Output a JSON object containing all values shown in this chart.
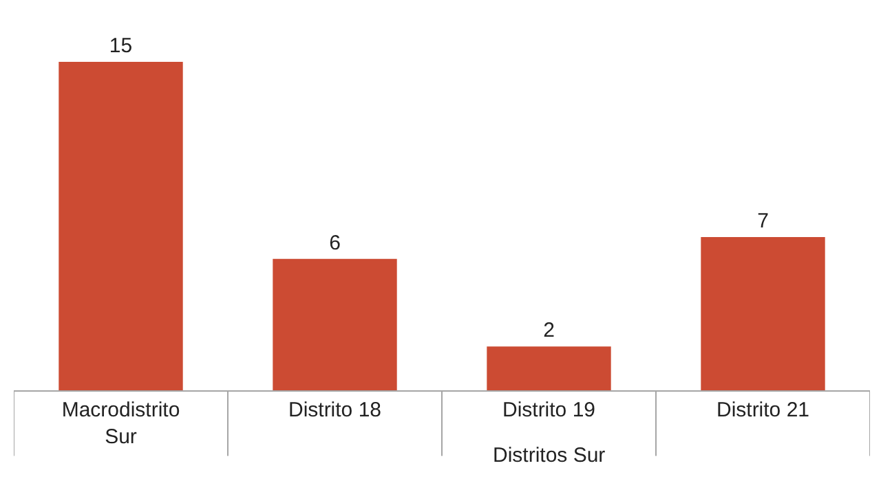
{
  "chart_data": {
    "type": "bar",
    "categories": [
      "Macrodistrito Sur",
      "Distrito 18",
      "Distrito 19",
      "Distrito 21"
    ],
    "values": [
      15,
      6,
      2,
      7
    ],
    "color": "#cc4b33",
    "xlabel": "Distritos Sur",
    "data_labels": true
  }
}
